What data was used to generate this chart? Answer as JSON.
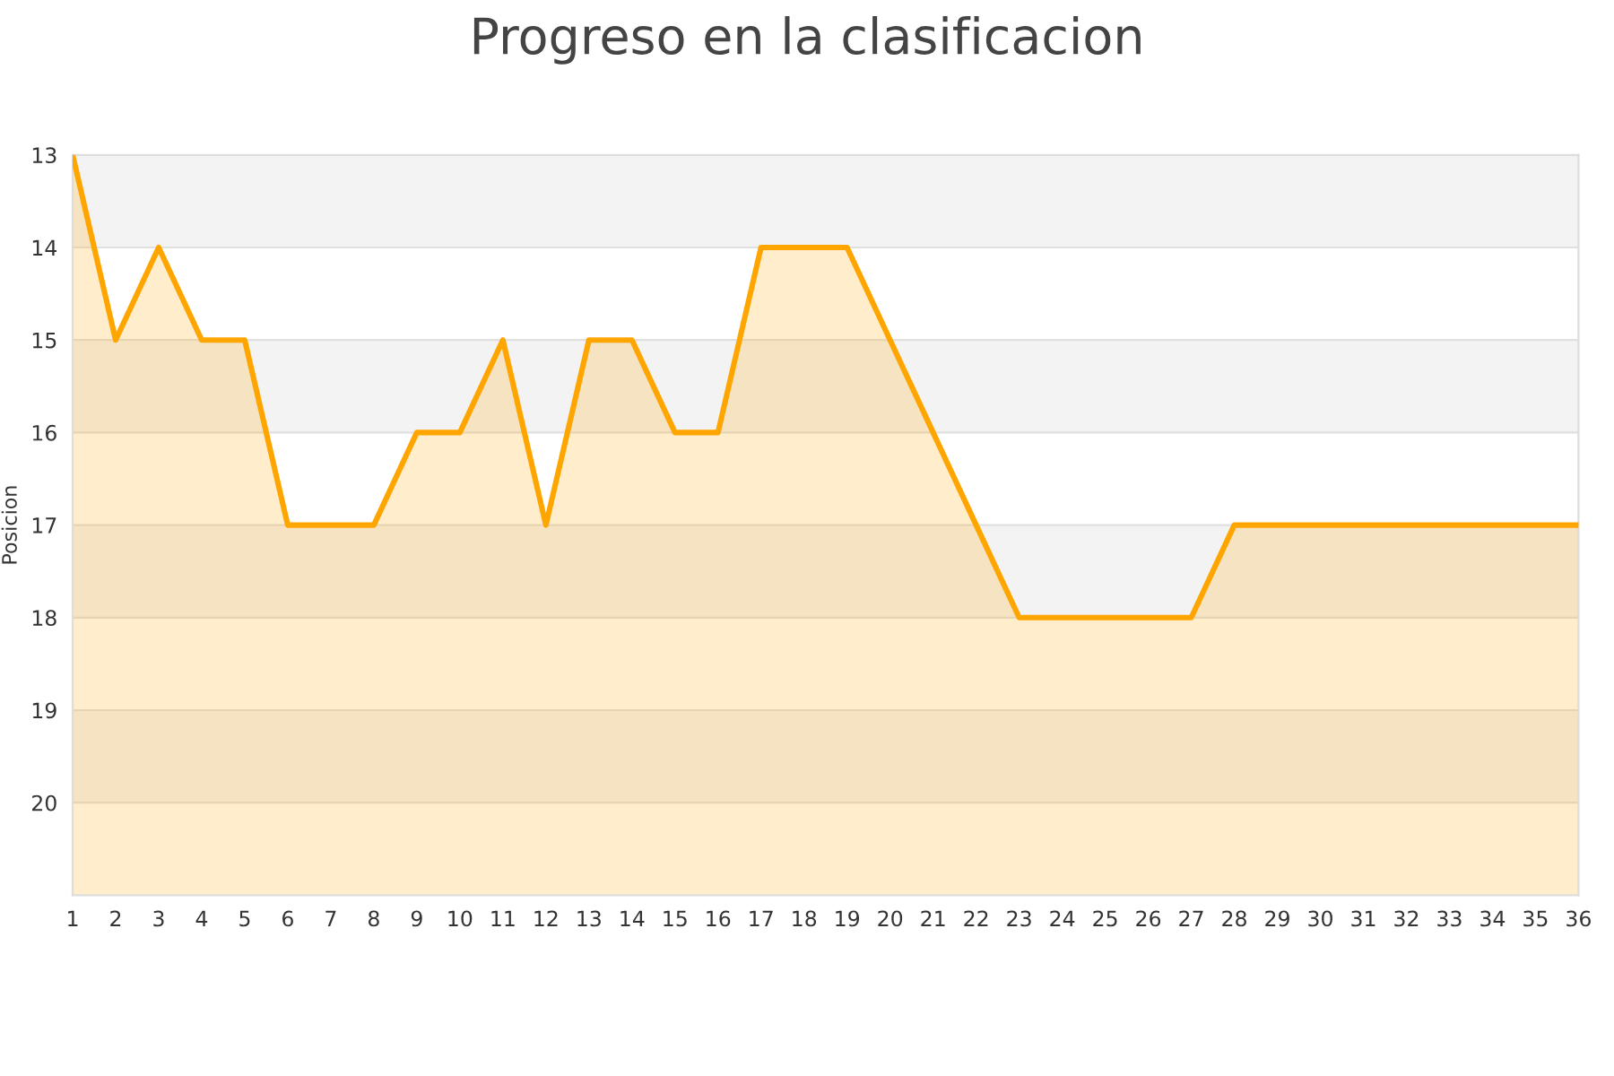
{
  "chart_data": {
    "type": "line",
    "title": "Progreso en la clasificacion",
    "ylabel": "Posicion",
    "x": [
      1,
      2,
      3,
      4,
      5,
      6,
      7,
      8,
      9,
      10,
      11,
      12,
      13,
      14,
      15,
      16,
      17,
      18,
      19,
      20,
      21,
      22,
      23,
      24,
      25,
      26,
      27,
      28,
      29,
      30,
      31,
      32,
      33,
      34,
      35,
      36
    ],
    "series": [
      {
        "color": "#ffa500",
        "values": [
          13,
          15,
          14,
          15,
          15,
          17,
          17,
          17,
          16,
          16,
          15,
          17,
          15,
          15,
          16,
          16,
          14,
          14,
          14,
          15,
          16,
          17,
          18,
          18,
          18,
          18,
          18,
          17,
          17,
          17,
          17,
          17,
          17,
          17,
          17,
          17
        ],
        "upper": [
          13,
          15,
          14,
          15,
          15,
          17,
          17,
          17,
          16,
          16,
          15,
          17,
          15,
          15,
          16,
          16,
          14,
          14,
          14,
          15,
          16,
          17,
          18,
          18,
          18,
          18,
          18,
          17,
          17,
          17,
          17,
          17,
          17,
          17,
          17,
          17
        ],
        "lower": [
          21,
          21,
          21,
          21,
          21,
          21,
          21,
          21,
          21,
          21,
          21,
          21,
          21,
          21,
          21,
          21,
          21,
          21,
          21,
          21,
          21,
          21,
          21,
          21,
          21,
          21,
          21,
          21,
          21,
          21,
          21,
          21,
          21,
          21,
          21,
          21
        ]
      }
    ],
    "xlim": [
      1,
      36
    ],
    "xticks": [
      1,
      2,
      3,
      4,
      5,
      6,
      7,
      8,
      9,
      10,
      11,
      12,
      13,
      14,
      15,
      16,
      17,
      18,
      19,
      20,
      21,
      22,
      23,
      24,
      25,
      26,
      27,
      28,
      29,
      30,
      31,
      32,
      33,
      34,
      35,
      36
    ],
    "ylim": [
      21,
      13
    ],
    "yticks": [
      13,
      14,
      15,
      16,
      17,
      18,
      19,
      20
    ],
    "bands": [
      {
        "axis": "y",
        "from": 13,
        "to": 14,
        "color": "#f3f3f3"
      },
      {
        "axis": "y",
        "from": 15,
        "to": 16,
        "color": "#f3f3f3"
      },
      {
        "axis": "y",
        "from": 17,
        "to": 18,
        "color": "#f3f3f3"
      },
      {
        "axis": "y",
        "from": 19,
        "to": 20,
        "color": "#f3f3f3"
      }
    ],
    "grid": "y"
  }
}
